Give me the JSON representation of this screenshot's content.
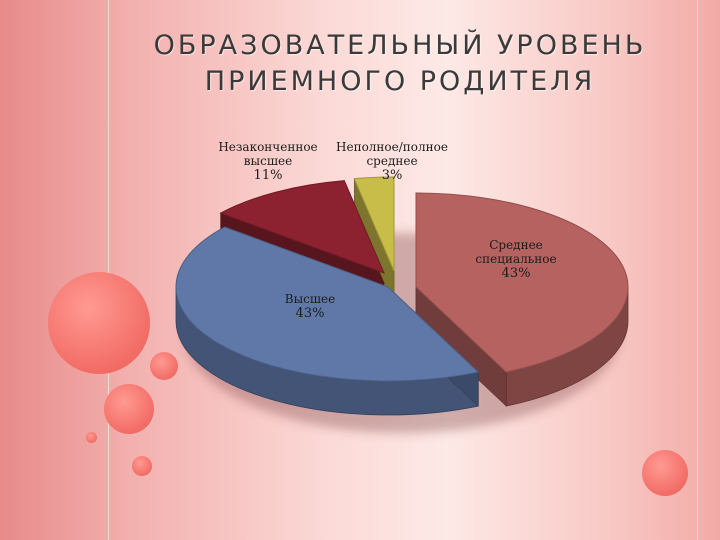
{
  "title": "ОБРАЗОВАТЕЛЬНЫЙ УРОВЕНЬ\nПРИЕМНОГО РОДИТЕЛЯ",
  "chart_data": {
    "type": "pie",
    "title": "",
    "slices": [
      {
        "label_lines": [
          "Среднее",
          "специальное"
        ],
        "pct_label": "43%",
        "value": 43,
        "color": "#b56260"
      },
      {
        "label_lines": [
          "Высшее"
        ],
        "pct_label": "43%",
        "value": 43,
        "color": "#5f78a8"
      },
      {
        "label_lines": [
          "Незаконченное",
          "высшее"
        ],
        "pct_label": "11%",
        "value": 11,
        "color": "#8c2230"
      },
      {
        "label_lines": [
          "Неполное/полное",
          "среднее"
        ],
        "pct_label": "3%",
        "value": 3,
        "color": "#c9bd49"
      }
    ]
  }
}
